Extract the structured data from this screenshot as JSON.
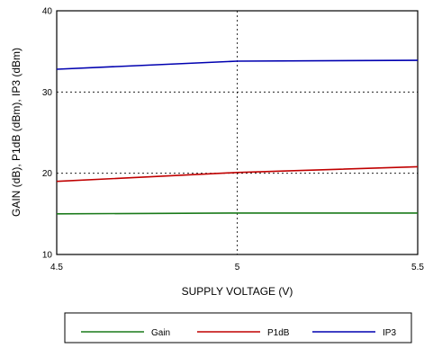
{
  "chart_data": {
    "type": "line",
    "xlabel": "SUPPLY VOLTAGE (V)",
    "ylabel": "GAIN (dB), P1dB (dBm), IP3 (dBm)",
    "xlim": [
      4.5,
      5.5
    ],
    "ylim": [
      10,
      40
    ],
    "xticks": [
      4.5,
      5,
      5.5
    ],
    "xtick_labels": [
      "4.5",
      "5",
      "5.5"
    ],
    "yticks": [
      10,
      20,
      30,
      40
    ],
    "ytick_labels": [
      "10",
      "20",
      "30",
      "40"
    ],
    "grid": "dotted, major ticks",
    "legend_position": "bottom",
    "series": [
      {
        "name": "Gain",
        "color": "#1a7a1a",
        "x": [
          4.5,
          5,
          5.5
        ],
        "values": [
          15.0,
          15.1,
          15.1
        ]
      },
      {
        "name": "P1dB",
        "color": "#c00000",
        "x": [
          4.5,
          5,
          5.5
        ],
        "values": [
          19.0,
          20.1,
          20.8
        ]
      },
      {
        "name": "IP3",
        "color": "#0000b0",
        "x": [
          4.5,
          5,
          5.5
        ],
        "values": [
          32.8,
          33.8,
          33.9
        ]
      }
    ]
  }
}
